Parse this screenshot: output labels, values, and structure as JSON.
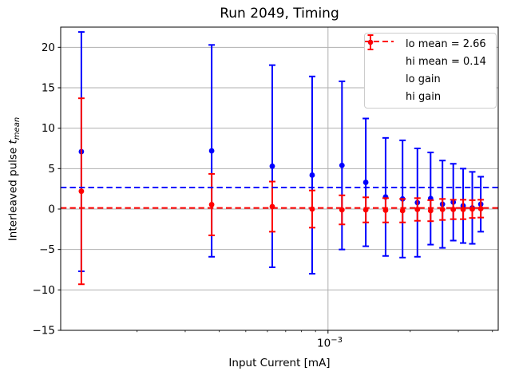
{
  "title": "Run 2049, Timing",
  "x_axis": {
    "label": "Input Current [mA]",
    "major_tick": {
      "base": "10",
      "exponent": "−3",
      "value": 0.001
    },
    "minor_ticks": [
      0.0002,
      0.0003,
      0.0004,
      0.0005,
      0.0006,
      0.0007,
      0.0008,
      0.0009,
      0.002,
      0.003,
      0.004
    ]
  },
  "y_axis": {
    "label_text": "Interleaved pulse ",
    "label_math_var": "t",
    "label_math_sub": "mean",
    "ticks": [
      -15,
      -10,
      -5,
      0,
      5,
      10,
      15,
      20
    ]
  },
  "legend": {
    "entries": [
      {
        "label": "lo mean = 2.66",
        "type": "dashed-line",
        "color": "#0000ff"
      },
      {
        "label": "hi mean = 0.14",
        "type": "dashed-line",
        "color": "#ff0000"
      },
      {
        "label": "lo gain",
        "type": "errorbar",
        "color": "#0000ff"
      },
      {
        "label": "hi gain",
        "type": "errorbar",
        "color": "#ff0000"
      }
    ]
  },
  "colors": {
    "grid": "#b0b0b0",
    "spine": "#000000",
    "lo": "#0000ff",
    "hi": "#ff0000",
    "background": "#ffffff"
  },
  "chart_data": {
    "type": "scatter",
    "title": "Run 2049, Timing",
    "xlabel": "Input Current [mA]",
    "ylabel": "Interleaved pulse t_mean",
    "x_scale": "log",
    "grid": true,
    "legend_position": "upper right",
    "xlim": [
      0.000105,
      0.0042
    ],
    "ylim": [
      -15,
      22.5
    ],
    "x": [
      0.000125,
      0.000375,
      0.000625,
      0.000875,
      0.001125,
      0.001375,
      0.001625,
      0.001875,
      0.002125,
      0.002375,
      0.002625,
      0.002875,
      0.003125,
      0.003375,
      0.003625
    ],
    "series": [
      {
        "name": "lo gain",
        "color": "#0000ff",
        "mean": 2.66,
        "mean_label": "lo mean = 2.66",
        "y": [
          7.1,
          7.2,
          5.3,
          4.2,
          5.4,
          3.3,
          1.5,
          1.25,
          0.8,
          1.3,
          0.6,
          0.85,
          0.4,
          0.15,
          0.6
        ],
        "yerr": [
          14.8,
          13.1,
          12.5,
          12.2,
          10.4,
          7.9,
          7.3,
          7.25,
          6.7,
          5.7,
          5.4,
          4.75,
          4.6,
          4.45,
          3.4
        ]
      },
      {
        "name": "hi gain",
        "color": "#ff0000",
        "mean": 0.14,
        "mean_label": "hi mean = 0.14",
        "y": [
          2.2,
          0.55,
          0.3,
          0.0,
          -0.1,
          -0.1,
          -0.15,
          -0.2,
          -0.05,
          -0.2,
          -0.05,
          -0.05,
          -0.05,
          0.0,
          0.05
        ],
        "yerr": [
          11.5,
          3.8,
          3.1,
          2.3,
          1.8,
          1.55,
          1.5,
          1.45,
          1.4,
          1.3,
          1.3,
          1.2,
          1.2,
          1.1,
          1.1
        ]
      }
    ]
  }
}
